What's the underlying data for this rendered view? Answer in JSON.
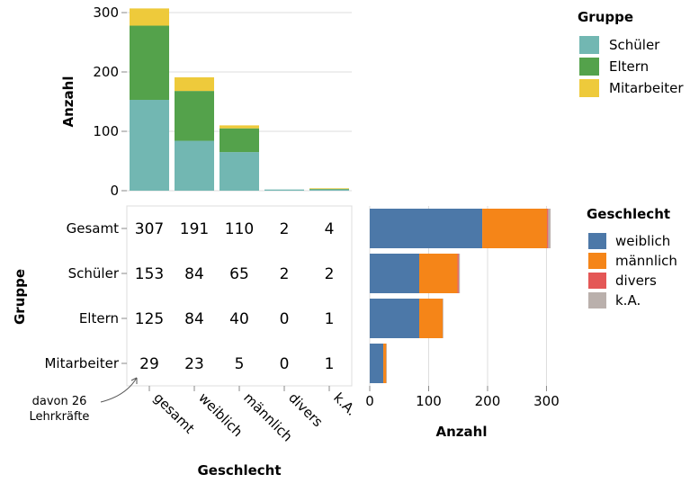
{
  "chart_data": [
    {
      "type": "bar",
      "stacked": true,
      "categories": [
        "gesamt",
        "weiblich",
        "männlich",
        "divers",
        "k.A."
      ],
      "series": [
        {
          "name": "Schüler",
          "values": [
            153,
            84,
            65,
            2,
            2
          ]
        },
        {
          "name": "Eltern",
          "values": [
            125,
            84,
            40,
            0,
            1
          ]
        },
        {
          "name": "Mitarbeiter",
          "values": [
            29,
            23,
            5,
            0,
            1
          ]
        }
      ],
      "ylabel": "Anzahl",
      "ylim": [
        0,
        300
      ],
      "yticks": [
        0,
        100,
        200,
        300
      ],
      "grid": true,
      "legend": {
        "title": "Gruppe",
        "position": "right",
        "entries": [
          "Schüler",
          "Eltern",
          "Mitarbeiter"
        ]
      },
      "colors": {
        "Schüler": "#72b7b2",
        "Eltern": "#54a24b",
        "Mitarbeiter": "#eeca3b"
      }
    },
    {
      "type": "table",
      "rows": [
        "Gesamt",
        "Schüler",
        "Eltern",
        "Mitarbeiter"
      ],
      "columns": [
        "gesamt",
        "weiblich",
        "männlich",
        "divers",
        "k.A."
      ],
      "values": [
        [
          307,
          191,
          110,
          2,
          4
        ],
        [
          153,
          84,
          65,
          2,
          2
        ],
        [
          125,
          84,
          40,
          0,
          1
        ],
        [
          29,
          23,
          5,
          0,
          1
        ]
      ],
      "xlabel": "Geschlecht",
      "ylabel": "Gruppe",
      "annotation": {
        "lines": [
          "davon 26",
          "Lehrkräfte"
        ]
      }
    },
    {
      "type": "bar",
      "orientation": "horizontal",
      "stacked": true,
      "categories": [
        "Gesamt",
        "Schüler",
        "Eltern",
        "Mitarbeiter"
      ],
      "series": [
        {
          "name": "weiblich",
          "values": [
            191,
            84,
            84,
            23
          ]
        },
        {
          "name": "männlich",
          "values": [
            110,
            65,
            40,
            5
          ]
        },
        {
          "name": "divers",
          "values": [
            2,
            2,
            0,
            0
          ]
        },
        {
          "name": "k.A.",
          "values": [
            4,
            2,
            1,
            1
          ]
        }
      ],
      "xlabel": "Anzahl",
      "xlim": [
        0,
        310
      ],
      "xticks": [
        0,
        100,
        200,
        300
      ],
      "grid": true,
      "legend": {
        "title": "Geschlecht",
        "position": "right",
        "entries": [
          "weiblich",
          "männlich",
          "divers",
          "k.A."
        ]
      },
      "colors": {
        "weiblich": "#4c78a8",
        "männlich": "#f58518",
        "divers": "#e45756",
        "k.A.": "#bab0ac"
      }
    }
  ]
}
